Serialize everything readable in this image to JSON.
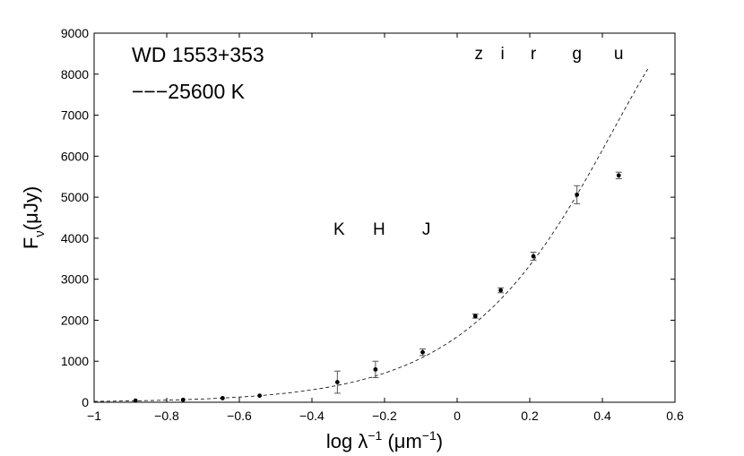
{
  "chart_data": {
    "type": "scatter",
    "title": "",
    "xlabel": {
      "base": "log λ",
      "exp": "−1",
      "unit": " (μm",
      "unit_exp": "−1",
      "close": ")"
    },
    "ylabel": {
      "base": "F",
      "sub": "ν",
      "unit": "(μJy)"
    },
    "xlim": [
      -1,
      0.6
    ],
    "ylim": [
      0,
      9000
    ],
    "grid": false,
    "x_ticks": [
      -1,
      -0.8,
      -0.6,
      -0.4,
      -0.2,
      0,
      0.2,
      0.4,
      0.6
    ],
    "x_tick_labels": [
      "−1",
      "−0.8",
      "−0.6",
      "−0.4",
      "−0.2",
      "0",
      "0.2",
      "0.4",
      "0.6"
    ],
    "y_ticks": [
      0,
      1000,
      2000,
      3000,
      4000,
      5000,
      6000,
      7000,
      8000,
      9000
    ],
    "y_tick_labels": [
      "0",
      "1000",
      "2000",
      "3000",
      "4000",
      "5000",
      "6000",
      "7000",
      "8000",
      "9000"
    ],
    "annotations": {
      "object": "WD 1553+353",
      "model": "−−−25600  K"
    },
    "band_labels": [
      {
        "text": "z",
        "x": 0.06,
        "y": 8370
      },
      {
        "text": "i",
        "x": 0.125,
        "y": 8370
      },
      {
        "text": "r",
        "x": 0.21,
        "y": 8370
      },
      {
        "text": "g",
        "x": 0.33,
        "y": 8370
      },
      {
        "text": "u",
        "x": 0.445,
        "y": 8370
      },
      {
        "text": "K",
        "x": -0.325,
        "y": 4080
      },
      {
        "text": "H",
        "x": -0.215,
        "y": 4080
      },
      {
        "text": "J",
        "x": -0.085,
        "y": 4080
      }
    ],
    "series": [
      {
        "style": "points-with-errorbars",
        "x": [
          -0.886,
          -0.755,
          -0.646,
          -0.544,
          -0.33,
          -0.225,
          -0.095,
          0.05,
          0.12,
          0.21,
          0.33,
          0.445
        ],
        "y": [
          40,
          60,
          100,
          160,
          490,
          800,
          1220,
          2100,
          2730,
          3560,
          5060,
          5530
        ],
        "yerr": [
          0,
          0,
          0,
          0,
          270,
          200,
          80,
          50,
          60,
          100,
          220,
          80
        ]
      },
      {
        "style": "dashed-line",
        "model": "blackbody",
        "temperature_K": 25600,
        "scale_ref": {
          "x": 0.33,
          "y": 5060
        },
        "x_range": [
          -1,
          0.525
        ]
      }
    ]
  }
}
